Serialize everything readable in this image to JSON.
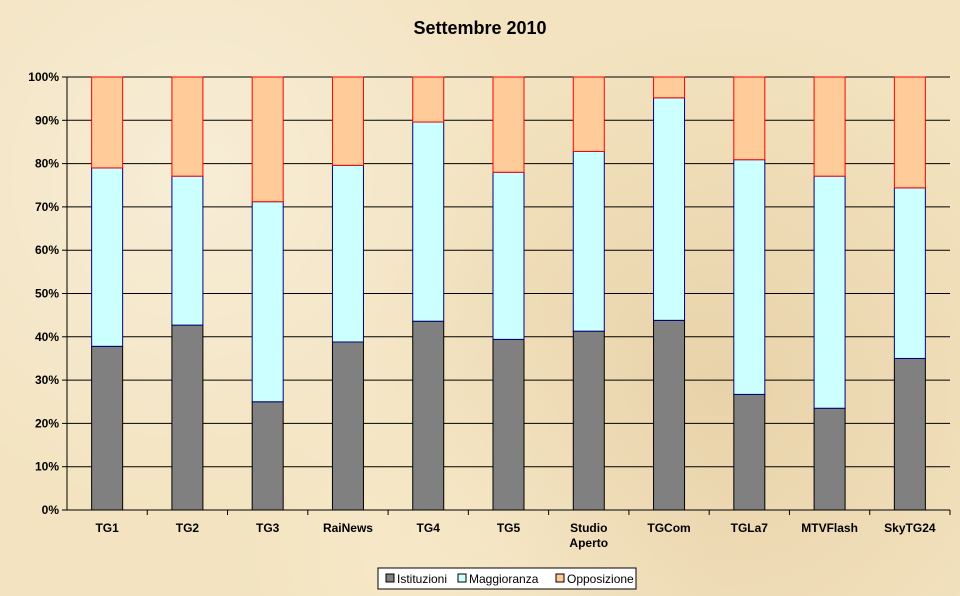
{
  "chart_data": {
    "type": "bar",
    "stacked": true,
    "percent_stacked": true,
    "title": "Settembre 2010",
    "xlabel": "",
    "ylabel": "",
    "ylim": [
      0,
      100
    ],
    "yticks": [
      "0%",
      "10%",
      "20%",
      "30%",
      "40%",
      "50%",
      "60%",
      "70%",
      "80%",
      "90%",
      "100%"
    ],
    "grid": true,
    "legend_position": "bottom",
    "categories": [
      "TG1",
      "TG2",
      "TG3",
      "RaiNews",
      "TG4",
      "TG5",
      "Studio Aperto",
      "TGCom",
      "TGLa7",
      "MTVFlash",
      "SkyTG24"
    ],
    "series": [
      {
        "name": "Istituzioni",
        "color": "#808080",
        "values": [
          37.8,
          42.7,
          25.0,
          38.8,
          43.6,
          39.4,
          41.3,
          43.8,
          26.7,
          23.5,
          35.0
        ]
      },
      {
        "name": "Maggioranza",
        "color": "#ccffff",
        "values": [
          41.2,
          34.4,
          46.2,
          40.8,
          46.0,
          38.6,
          41.5,
          51.4,
          54.2,
          53.6,
          39.4
        ]
      },
      {
        "name": "Opposizione",
        "color": "#ffcc99",
        "values": [
          21.0,
          22.9,
          28.8,
          20.4,
          10.4,
          22.0,
          17.2,
          4.8,
          19.1,
          22.9,
          25.6
        ]
      }
    ]
  }
}
